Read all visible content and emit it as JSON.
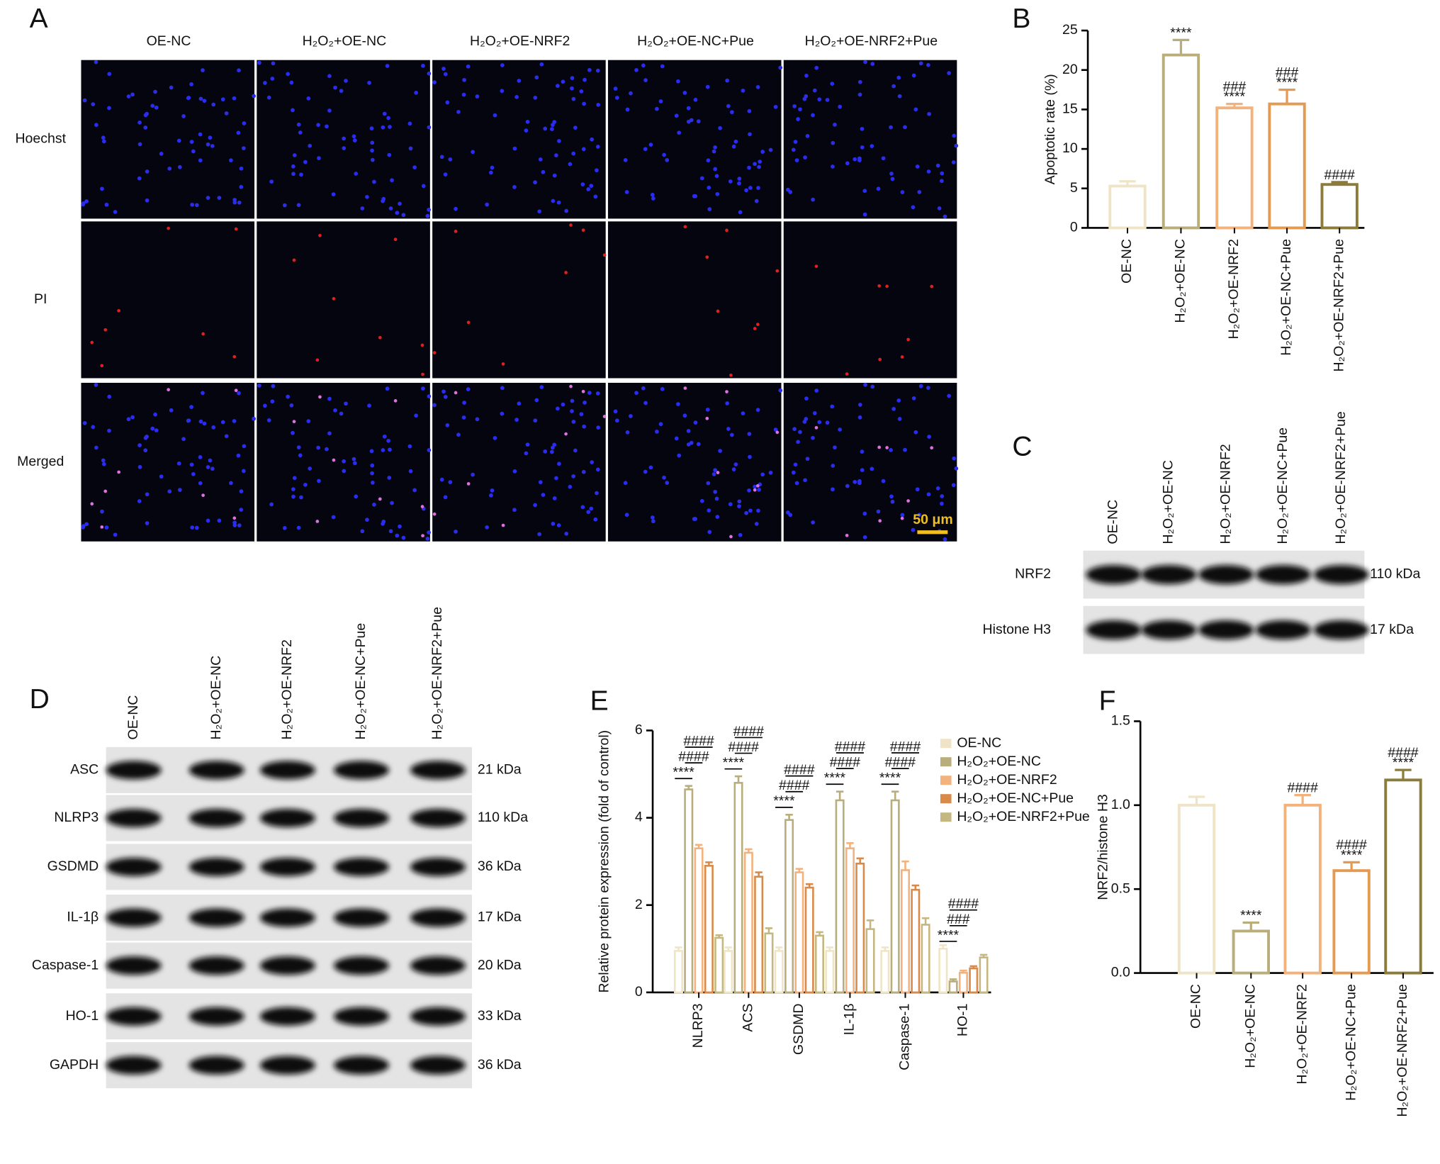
{
  "panel_labels": [
    "A",
    "B",
    "C",
    "D",
    "E",
    "F"
  ],
  "panel_a": {
    "columns": [
      "OE-NC",
      "H₂O₂+OE-NC",
      "H₂O₂+OE-NRF2",
      "H₂O₂+OE-NC+Pue",
      "H₂O₂+OE-NRF2+Pue"
    ],
    "rows": [
      "Hoechst",
      "PI",
      "Merged"
    ],
    "scale_bar": "50 μm"
  },
  "panel_c": {
    "lanes": [
      "OE-NC",
      "H₂O₂+OE-NC",
      "H₂O₂+OE-NRF2",
      "H₂O₂+OE-NC+Pue",
      "H₂O₂+OE-NRF2+Pue"
    ],
    "bands": [
      {
        "name": "NRF2",
        "size": "110 kDa"
      },
      {
        "name": "Histone H3",
        "size": "17 kDa"
      }
    ]
  },
  "panel_d": {
    "lanes": [
      "OE-NC",
      "H₂O₂+OE-NC",
      "H₂O₂+OE-NRF2",
      "H₂O₂+OE-NC+Pue",
      "H₂O₂+OE-NRF2+Pue"
    ],
    "bands": [
      {
        "name": "ASC",
        "size": "21 kDa"
      },
      {
        "name": "NLRP3",
        "size": "110 kDa"
      },
      {
        "name": "GSDMD",
        "size": "36 kDa"
      },
      {
        "name": "IL-1β",
        "size": "17 kDa"
      },
      {
        "name": "Caspase-1",
        "size": "20 kDa"
      },
      {
        "name": "HO-1",
        "size": "33 kDa"
      },
      {
        "name": "GAPDH",
        "size": "36 kDa"
      }
    ]
  },
  "chart_data": [
    {
      "type": "bar",
      "ylabel": "Apoptotic rate (%)",
      "categories": [
        "OE-NC",
        "H₂O₂+OE-NC",
        "H₂O₂+OE-NRF2",
        "H₂O₂+OE-NC+Pue",
        "H₂O₂+OE-NRF2+Pue"
      ],
      "values": [
        5.3,
        21.9,
        15.2,
        15.7,
        5.5
      ],
      "errors": [
        0.6,
        1.9,
        0.5,
        1.8,
        0.3
      ],
      "colors": [
        "#efe5c6",
        "#b9ae7b",
        "#f3b27c",
        "#e59a52",
        "#8c7c3c"
      ],
      "sig_labels": [
        null,
        [
          "****"
        ],
        [
          "###",
          "****"
        ],
        [
          "###",
          "****"
        ],
        [
          "####"
        ]
      ],
      "ylim": [
        0,
        25
      ],
      "yticks": [
        0,
        5,
        10,
        15,
        20,
        25
      ]
    },
    {
      "type": "grouped_bar",
      "ylabel": "Relative protein expression (fold of control)",
      "categories": [
        "NLRP3",
        "ACS",
        "GSDMD",
        "IL-1β",
        "Caspase-1",
        "HO-1"
      ],
      "series": [
        {
          "name": "OE-NC",
          "color": "#efe5c6",
          "values": [
            0.95,
            0.95,
            0.95,
            0.95,
            0.95,
            1.0
          ],
          "errors": [
            0.08,
            0.08,
            0.08,
            0.08,
            0.08,
            0.08
          ]
        },
        {
          "name": "H₂O₂+OE-NC",
          "color": "#b9ae7b",
          "values": [
            4.65,
            4.8,
            3.95,
            4.4,
            4.4,
            0.25
          ],
          "errors": [
            0.08,
            0.15,
            0.12,
            0.2,
            0.2,
            0.05
          ]
        },
        {
          "name": "H₂O₂+OE-NRF2",
          "color": "#f3b27c",
          "values": [
            3.3,
            3.2,
            2.75,
            3.3,
            2.8,
            0.45
          ],
          "errors": [
            0.08,
            0.08,
            0.08,
            0.12,
            0.2,
            0.05
          ]
        },
        {
          "name": "H₂O₂+OE-NC+Pue",
          "color": "#d98a48",
          "values": [
            2.9,
            2.65,
            2.4,
            2.95,
            2.35,
            0.55
          ],
          "errors": [
            0.08,
            0.1,
            0.08,
            0.12,
            0.1,
            0.05
          ]
        },
        {
          "name": "H₂O₂+OE-NRF2+Pue",
          "color": "#c4b880",
          "values": [
            1.25,
            1.35,
            1.3,
            1.45,
            1.55,
            0.8
          ],
          "errors": [
            0.06,
            0.12,
            0.08,
            0.2,
            0.15,
            0.06
          ]
        }
      ],
      "sig_labels": [
        [
          "####",
          "####",
          "****"
        ],
        [
          "####",
          "####",
          "****"
        ],
        [
          "####",
          "####",
          "****"
        ],
        [
          "####",
          "####",
          "****"
        ],
        [
          "####",
          "####",
          "****"
        ],
        [
          "####",
          "###",
          "****"
        ]
      ],
      "ylim": [
        0,
        6
      ],
      "yticks": [
        0,
        2,
        4,
        6
      ],
      "legend": "top-right"
    },
    {
      "type": "bar",
      "ylabel": "NRF2/histone H3",
      "categories": [
        "OE-NC",
        "H₂O₂+OE-NC",
        "H₂O₂+OE-NRF2",
        "H₂O₂+OE-NC+Pue",
        "H₂O₂+OE-NRF2+Pue"
      ],
      "values": [
        1.0,
        0.25,
        1.0,
        0.61,
        1.15
      ],
      "errors": [
        0.05,
        0.05,
        0.06,
        0.05,
        0.06
      ],
      "colors": [
        "#efe5c6",
        "#b9ae7b",
        "#f3b27c",
        "#e59a52",
        "#8c7c3c"
      ],
      "sig_labels": [
        null,
        [
          "****"
        ],
        [
          "####"
        ],
        [
          "####",
          "****"
        ],
        [
          "####",
          "****"
        ]
      ],
      "ylim": [
        0,
        1.5
      ],
      "yticks": [
        {
          "value": 0,
          "label": "0.0"
        },
        {
          "value": 0.5,
          "label": "0.5"
        },
        {
          "value": 1,
          "label": "1.0"
        },
        {
          "value": 1.5,
          "label": "1.5"
        }
      ]
    }
  ]
}
